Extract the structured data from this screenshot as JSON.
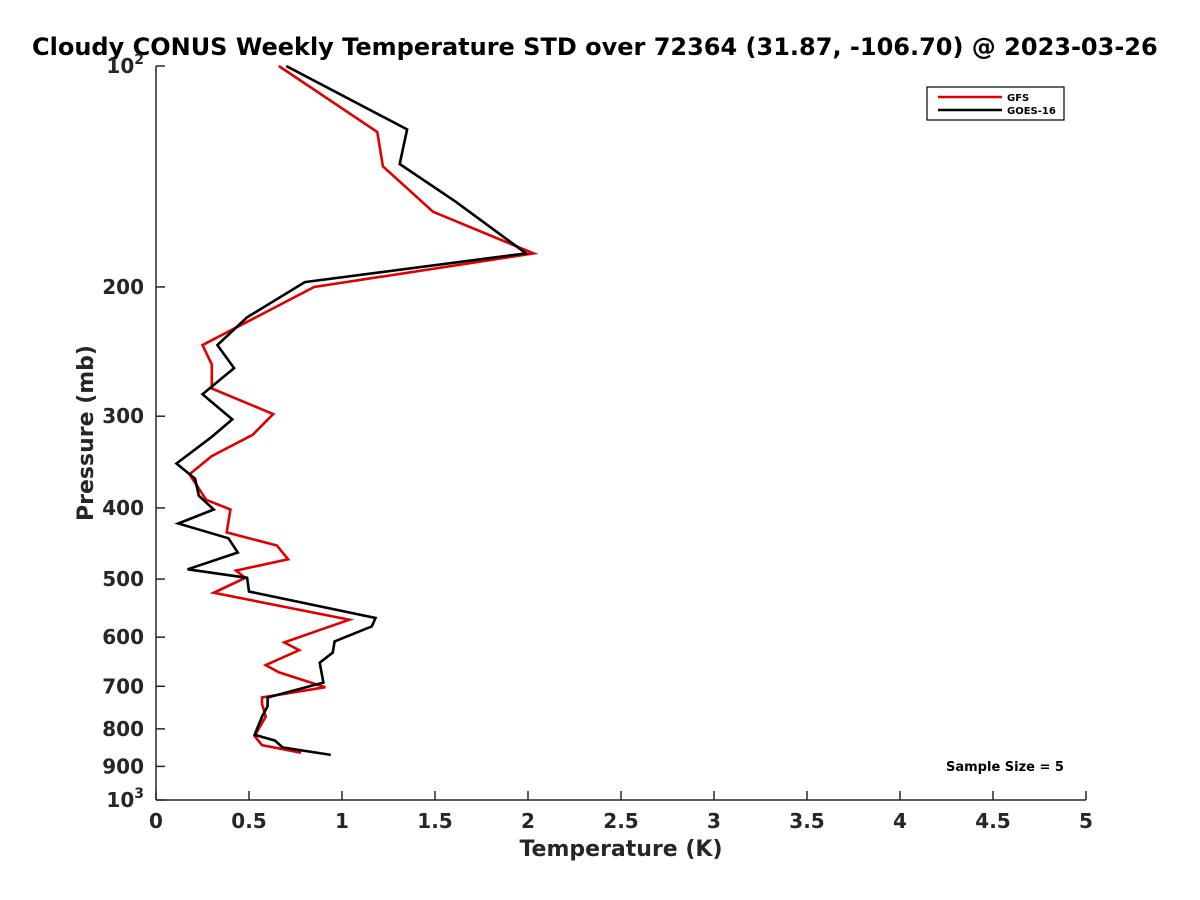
{
  "chart_data": {
    "type": "line",
    "title": "Cloudy CONUS Weekly Temperature STD over 72364 (31.87, -106.70) @ 2023-03-26",
    "xlabel": "Temperature (K)",
    "ylabel": "Pressure (mb)",
    "xlim": [
      0,
      5
    ],
    "ylim": [
      100,
      1000
    ],
    "y_scale": "log",
    "y_reversed": true,
    "x_ticks": [
      "0",
      "0.5",
      "1",
      "1.5",
      "2",
      "2.5",
      "3",
      "3.5",
      "4",
      "4.5",
      "5"
    ],
    "y_ticks": [
      {
        "value": 100,
        "base": "10",
        "exp": "2"
      },
      {
        "value": 200,
        "label": "200"
      },
      {
        "value": 300,
        "label": "300"
      },
      {
        "value": 400,
        "label": "400"
      },
      {
        "value": 500,
        "label": "500"
      },
      {
        "value": 600,
        "label": "600"
      },
      {
        "value": 700,
        "label": "700"
      },
      {
        "value": 800,
        "label": "800"
      },
      {
        "value": 900,
        "label": "900"
      },
      {
        "value": 1000,
        "base": "10",
        "exp": "3"
      }
    ],
    "legend_position": "top-right",
    "grid": false,
    "annotation": "Sample Size = 5",
    "series": [
      {
        "name": "GFS",
        "color": "#e00000",
        "points": [
          [
            0.66,
            100
          ],
          [
            1.19,
            123
          ],
          [
            1.22,
            137
          ],
          [
            1.49,
            158
          ],
          [
            2.03,
            180
          ],
          [
            0.85,
            200
          ],
          [
            0.25,
            240
          ],
          [
            0.3,
            255
          ],
          [
            0.3,
            275
          ],
          [
            0.63,
            298
          ],
          [
            0.52,
            318
          ],
          [
            0.3,
            340
          ],
          [
            0.18,
            360
          ],
          [
            0.27,
            390
          ],
          [
            0.4,
            402
          ],
          [
            0.38,
            432
          ],
          [
            0.65,
            450
          ],
          [
            0.71,
            470
          ],
          [
            0.43,
            487
          ],
          [
            0.48,
            498
          ],
          [
            0.31,
            522
          ],
          [
            1.04,
            568
          ],
          [
            0.87,
            588
          ],
          [
            0.69,
            610
          ],
          [
            0.77,
            625
          ],
          [
            0.59,
            655
          ],
          [
            0.66,
            670
          ],
          [
            0.91,
            702
          ],
          [
            0.57,
            725
          ],
          [
            0.57,
            740
          ],
          [
            0.59,
            770
          ],
          [
            0.53,
            818
          ],
          [
            0.57,
            842
          ],
          [
            0.78,
            862
          ]
        ]
      },
      {
        "name": "GOES-16",
        "color": "#000000",
        "points": [
          [
            0.7,
            100
          ],
          [
            1.35,
            122
          ],
          [
            1.31,
            136
          ],
          [
            1.61,
            153
          ],
          [
            1.99,
            180
          ],
          [
            0.8,
            197
          ],
          [
            0.49,
            220
          ],
          [
            0.33,
            240
          ],
          [
            0.42,
            258
          ],
          [
            0.25,
            280
          ],
          [
            0.41,
            303
          ],
          [
            0.3,
            320
          ],
          [
            0.11,
            348
          ],
          [
            0.21,
            365
          ],
          [
            0.23,
            385
          ],
          [
            0.31,
            402
          ],
          [
            0.12,
            420
          ],
          [
            0.39,
            440
          ],
          [
            0.44,
            460
          ],
          [
            0.17,
            485
          ],
          [
            0.49,
            498
          ],
          [
            0.5,
            520
          ],
          [
            1.18,
            565
          ],
          [
            1.16,
            580
          ],
          [
            0.96,
            608
          ],
          [
            0.95,
            630
          ],
          [
            0.88,
            650
          ],
          [
            0.9,
            692
          ],
          [
            0.6,
            725
          ],
          [
            0.6,
            745
          ],
          [
            0.57,
            770
          ],
          [
            0.53,
            815
          ],
          [
            0.64,
            830
          ],
          [
            0.68,
            848
          ],
          [
            0.94,
            868
          ]
        ]
      }
    ]
  }
}
